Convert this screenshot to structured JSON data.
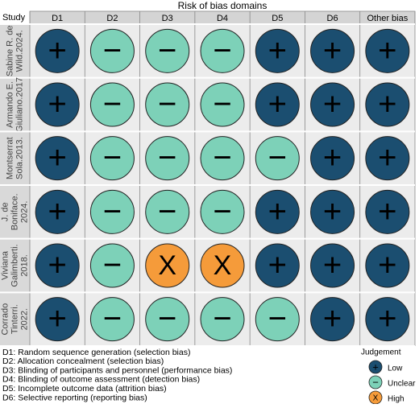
{
  "title": "Risk of bias domains",
  "header": {
    "study": "Study",
    "domains": [
      "D1",
      "D2",
      "D3",
      "D4",
      "D5",
      "D6",
      "Other bias"
    ]
  },
  "rows": [
    {
      "study": [
        "Sabine R. de",
        "Wild.2024."
      ],
      "cells": [
        "+",
        "−",
        "−",
        "−",
        "+",
        "+",
        "+"
      ]
    },
    {
      "study": [
        "Armando E.",
        "Giuliano.2017"
      ],
      "cells": [
        "+",
        "−",
        "−",
        "−",
        "+",
        "+",
        "+"
      ]
    },
    {
      "study": [
        "Montserrat",
        "Sola.2013."
      ],
      "cells": [
        "+",
        "−",
        "−",
        "−",
        "−",
        "+",
        "+"
      ]
    },
    {
      "study": [
        "J. de",
        "Boniface.",
        "2024."
      ],
      "cells": [
        "+",
        "−",
        "−",
        "−",
        "+",
        "+",
        "+"
      ]
    },
    {
      "study": [
        "Viviana",
        "Galimberti.",
        "2018."
      ],
      "cells": [
        "+",
        "−",
        "X",
        "X",
        "+",
        "+",
        "+"
      ]
    },
    {
      "study": [
        "Corrado",
        "Tinterri.",
        "2022."
      ],
      "cells": [
        "+",
        "−",
        "−",
        "−",
        "−",
        "+",
        "+"
      ]
    }
  ],
  "footnotes": [
    "D1: Random sequence generation (selection bias)",
    "D2: Allocation concealment (selection bias)",
    "D3: Blinding of participants and personnel (performance bias)",
    "D4: Blinding of outcome assessment (detection bias)",
    "D5: Incomplete outcome data (attrition bias)",
    "D6: Selective reporting (reporting bias)"
  ],
  "legend": {
    "title": "Judgement",
    "items": [
      {
        "symbol": "+",
        "label": "Low",
        "color": "#1b4e70"
      },
      {
        "symbol": "−",
        "label": "Unclear",
        "color": "#7dd1b8"
      },
      {
        "symbol": "X",
        "label": "High",
        "color": "#f59b3a"
      }
    ]
  }
}
